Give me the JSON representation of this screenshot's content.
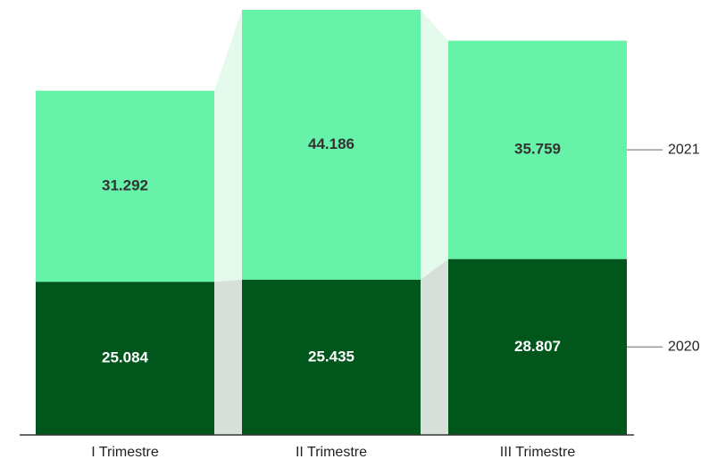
{
  "chart_data": {
    "type": "stacked-bar",
    "categories": [
      "I Trimestre",
      "II Trimestre",
      "III Trimestre"
    ],
    "series": [
      {
        "name": "2020",
        "color": "#00561b",
        "values": [
          25.084,
          25.435,
          28.807
        ]
      },
      {
        "name": "2021",
        "color": "#66f2a8",
        "values": [
          31.292,
          44.186,
          35.759
        ]
      }
    ]
  }
}
